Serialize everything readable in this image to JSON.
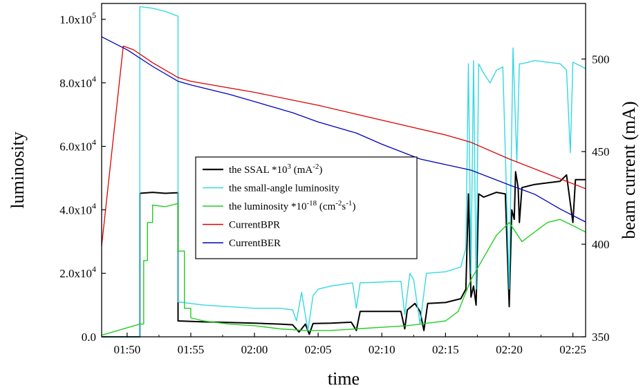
{
  "chart_data": {
    "type": "line",
    "title": "",
    "xlabel": "time",
    "ylabel_left": "luminosity",
    "ylabel_right": "beam current (mA)",
    "xlim": [
      "01:48",
      "02:26"
    ],
    "ylim_left": [
      0,
      105000
    ],
    "ylim_right": [
      350,
      530
    ],
    "grid": false,
    "legend_position": "center",
    "x_ticks": [
      "01:50",
      "01:55",
      "02:00",
      "02:05",
      "02:10",
      "02:15",
      "02:20",
      "02:25"
    ],
    "y_left_ticks": [
      {
        "value": 0,
        "mantissa": "0.0",
        "exp": ""
      },
      {
        "value": 20000,
        "mantissa": "2.0x10",
        "exp": "4"
      },
      {
        "value": 40000,
        "mantissa": "4.0x10",
        "exp": "4"
      },
      {
        "value": 60000,
        "mantissa": "6.0x10",
        "exp": "4"
      },
      {
        "value": 80000,
        "mantissa": "8.0x10",
        "exp": "4"
      },
      {
        "value": 100000,
        "mantissa": "1.0x10",
        "exp": "5"
      }
    ],
    "y_right_ticks": [
      350,
      400,
      450,
      500
    ],
    "legend": [
      {
        "pre": "the SSAL *10",
        "sup": "3",
        "post": " (mA",
        "sup2": "-2",
        "post2": ")",
        "color": "#000000"
      },
      {
        "pre": "the small-angle luminosity",
        "sup": "",
        "post": "",
        "sup2": "",
        "post2": "",
        "color": "#33d9e0"
      },
      {
        "pre": "the luminosity *10",
        "sup": "-18",
        "post": " (cm",
        "sup2": "-2",
        "post2": "s",
        "sup3": "-1",
        "post3": ")",
        "color": "#22cc22"
      },
      {
        "pre": "CurrentBPR",
        "sup": "",
        "post": "",
        "sup2": "",
        "post2": "",
        "color": "#dd0000"
      },
      {
        "pre": "CurrentBER",
        "sup": "",
        "post": "",
        "sup2": "",
        "post2": "",
        "color": "#0000bb"
      }
    ],
    "series": [
      {
        "name": "the SSAL *10^3 (mA^-2)",
        "axis": "left",
        "color": "#000000",
        "width": 2,
        "points": [
          [
            "01:48",
            0
          ],
          [
            "01:51",
            0
          ],
          [
            "01:51",
            45200
          ],
          [
            "01:52",
            45500
          ],
          [
            "01:53",
            45200
          ],
          [
            "01:54",
            45400
          ],
          [
            "01:54",
            5000
          ],
          [
            "01:56",
            4700
          ],
          [
            "01:58",
            4500
          ],
          [
            "02:00",
            4300
          ],
          [
            "02:02",
            4000
          ],
          [
            "02:03",
            3800
          ],
          [
            "02:03.5",
            1500
          ],
          [
            "02:04",
            4000
          ],
          [
            "02:04.3",
            800
          ],
          [
            "02:04.6",
            4200
          ],
          [
            "02:06",
            4300
          ],
          [
            "02:07.6",
            4600
          ],
          [
            "02:08",
            2000
          ],
          [
            "02:08.3",
            8000
          ],
          [
            "02:11.5",
            8000
          ],
          [
            "02:11.8",
            2500
          ],
          [
            "02:12",
            8500
          ],
          [
            "02:12.6",
            10500
          ],
          [
            "02:13",
            8000
          ],
          [
            "02:13.3",
            2000
          ],
          [
            "02:13.6",
            10500
          ],
          [
            "02:15",
            10800
          ],
          [
            "02:16.2",
            12000
          ],
          [
            "02:16.6",
            15000
          ],
          [
            "02:16.8",
            45000
          ],
          [
            "02:17",
            12500
          ],
          [
            "02:17.2",
            16000
          ],
          [
            "02:17.4",
            10000
          ],
          [
            "02:17.6",
            45000
          ],
          [
            "02:18",
            44000
          ],
          [
            "02:19",
            45500
          ],
          [
            "02:19.7",
            45000
          ],
          [
            "02:20",
            9500
          ],
          [
            "02:20.2",
            40000
          ],
          [
            "02:20.4",
            37000
          ],
          [
            "02:20.5",
            52000
          ],
          [
            "02:20.7",
            47000
          ],
          [
            "02:20.8",
            36000
          ],
          [
            "02:21",
            47000
          ],
          [
            "02:22",
            48000
          ],
          [
            "02:23",
            48500
          ],
          [
            "02:24",
            49000
          ],
          [
            "02:24.5",
            51000
          ],
          [
            "02:25",
            36000
          ],
          [
            "02:25.2",
            49500
          ],
          [
            "02:26",
            49500
          ]
        ]
      },
      {
        "name": "the small-angle luminosity",
        "axis": "left",
        "color": "#33d9e0",
        "width": 1.4,
        "points": [
          [
            "01:48",
            0
          ],
          [
            "01:51",
            0
          ],
          [
            "01:51",
            104000
          ],
          [
            "01:52",
            103500
          ],
          [
            "01:53",
            102500
          ],
          [
            "01:54",
            101000
          ],
          [
            "01:54",
            11000
          ],
          [
            "01:56",
            10000
          ],
          [
            "01:58",
            9500
          ],
          [
            "02:00",
            9000
          ],
          [
            "02:02",
            9000
          ],
          [
            "02:03",
            8500
          ],
          [
            "02:03.3",
            5000
          ],
          [
            "02:03.7",
            14000
          ],
          [
            "02:04.2",
            2000
          ],
          [
            "02:04.6",
            13000
          ],
          [
            "02:05",
            15000
          ],
          [
            "02:06",
            16000
          ],
          [
            "02:07.7",
            17000
          ],
          [
            "02:08",
            9000
          ],
          [
            "02:08.3",
            17000
          ],
          [
            "02:11.5",
            17500
          ],
          [
            "02:11.8",
            7000
          ],
          [
            "02:12.2",
            20000
          ],
          [
            "02:12.5",
            18000
          ],
          [
            "02:13",
            4000
          ],
          [
            "02:13.5",
            20000
          ],
          [
            "02:15",
            20500
          ],
          [
            "02:16.2",
            22000
          ],
          [
            "02:16.6",
            28000
          ],
          [
            "02:16.8",
            86000
          ],
          [
            "02:17",
            20000
          ],
          [
            "02:17.2",
            87000
          ],
          [
            "02:17.4",
            15000
          ],
          [
            "02:17.6",
            86000
          ],
          [
            "02:18",
            83000
          ],
          [
            "02:18.5",
            80000
          ],
          [
            "02:19",
            84000
          ],
          [
            "02:19.5",
            85000
          ],
          [
            "02:20",
            15000
          ],
          [
            "02:20.3",
            91000
          ],
          [
            "02:20.6",
            55000
          ],
          [
            "02:20.8",
            86000
          ],
          [
            "02:21",
            86000
          ],
          [
            "02:22",
            87000
          ],
          [
            "02:23",
            86500
          ],
          [
            "02:24",
            86000
          ],
          [
            "02:24.5",
            84000
          ],
          [
            "02:24.8",
            58000
          ],
          [
            "02:25",
            86500
          ],
          [
            "02:26",
            84500
          ]
        ]
      },
      {
        "name": "the luminosity *10^-18 (cm^-2 s^-1)",
        "axis": "left",
        "color": "#22cc22",
        "width": 1.4,
        "points": [
          [
            "01:48",
            500
          ],
          [
            "01:51",
            4000
          ],
          [
            "01:51.3",
            4000
          ],
          [
            "01:51.3",
            24000
          ],
          [
            "01:51.6",
            24000
          ],
          [
            "01:51.6",
            36000
          ],
          [
            "01:52",
            36000
          ],
          [
            "01:52",
            41500
          ],
          [
            "01:53",
            41000
          ],
          [
            "01:54",
            42000
          ],
          [
            "01:54",
            27000
          ],
          [
            "01:54.5",
            27000
          ],
          [
            "01:54.5",
            9000
          ],
          [
            "01:55",
            9000
          ],
          [
            "01:55",
            6000
          ],
          [
            "01:56",
            5000
          ],
          [
            "01:58",
            4000
          ],
          [
            "02:00",
            3500
          ],
          [
            "02:02",
            2500
          ],
          [
            "02:04",
            2000
          ],
          [
            "02:06",
            2000
          ],
          [
            "02:08",
            2500
          ],
          [
            "02:10",
            3000
          ],
          [
            "02:12",
            3500
          ],
          [
            "02:14",
            4500
          ],
          [
            "02:15",
            5000
          ],
          [
            "02:16",
            8000
          ],
          [
            "02:17",
            18000
          ],
          [
            "02:18",
            25000
          ],
          [
            "02:19",
            32000
          ],
          [
            "02:20",
            36000
          ],
          [
            "02:21",
            30000
          ],
          [
            "02:22",
            33000
          ],
          [
            "02:23",
            36000
          ],
          [
            "02:24",
            37000
          ],
          [
            "02:25",
            35000
          ],
          [
            "02:26",
            33000
          ]
        ]
      },
      {
        "name": "CurrentBPR",
        "axis": "right",
        "color": "#dd0000",
        "width": 1.3,
        "points": [
          [
            "01:48",
            399
          ],
          [
            "01:49.7",
            507
          ],
          [
            "01:50.5",
            505
          ],
          [
            "01:52",
            498
          ],
          [
            "01:54",
            490
          ],
          [
            "01:55",
            488
          ],
          [
            "02:00",
            482
          ],
          [
            "02:05",
            475
          ],
          [
            "02:10",
            467
          ],
          [
            "02:15",
            459
          ],
          [
            "02:17",
            455
          ],
          [
            "02:20",
            446
          ],
          [
            "02:23",
            438
          ],
          [
            "02:26",
            430
          ]
        ]
      },
      {
        "name": "CurrentBER",
        "axis": "right",
        "color": "#0000bb",
        "width": 1.3,
        "points": [
          [
            "01:48",
            512
          ],
          [
            "01:50",
            505
          ],
          [
            "01:52",
            496
          ],
          [
            "01:54",
            488
          ],
          [
            "01:55",
            486
          ],
          [
            "01:58",
            481
          ],
          [
            "02:00",
            477
          ],
          [
            "02:03",
            471
          ],
          [
            "02:05",
            466
          ],
          [
            "02:08",
            460
          ],
          [
            "02:10",
            454
          ],
          [
            "02:13",
            446
          ],
          [
            "02:15",
            443
          ],
          [
            "02:17",
            440
          ],
          [
            "02:20",
            432
          ],
          [
            "02:22",
            427
          ],
          [
            "02:24",
            419
          ],
          [
            "02:26",
            412
          ]
        ]
      }
    ]
  }
}
